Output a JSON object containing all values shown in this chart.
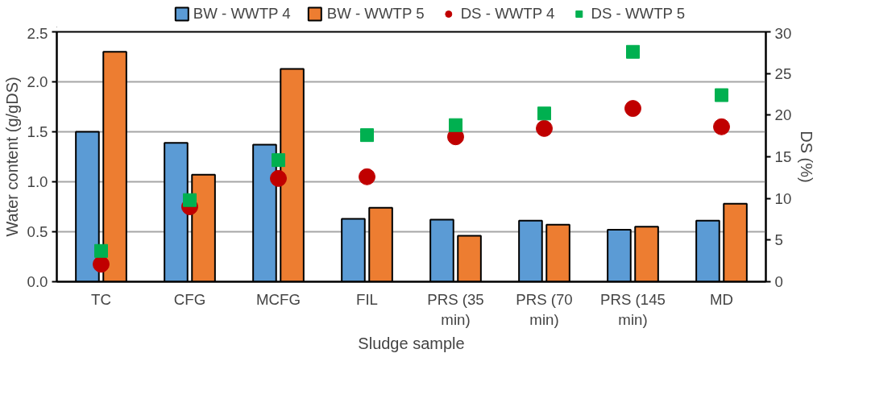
{
  "chart_data": {
    "type": "bar",
    "xlabel": "Sludge sample",
    "ylabel": "Water content (g/gDS)",
    "y2label": "DS (%)",
    "categories": [
      "TC",
      "CFG",
      "MCFG",
      "FIL",
      "PRS (35 min)",
      "PRS (70 min)",
      "PRS (145 min)",
      "MD"
    ],
    "series": [
      {
        "name": "BW - WWTP 4",
        "color": "#5b9bd5",
        "values": [
          1.5,
          1.39,
          1.37,
          0.63,
          0.62,
          0.61,
          0.52,
          0.61
        ]
      },
      {
        "name": "BW - WWTP 5",
        "color": "#ed7d31",
        "values": [
          2.3,
          1.07,
          2.13,
          0.74,
          0.46,
          0.57,
          0.55,
          0.78
        ]
      },
      {
        "name": "DS - WWTP 4",
        "color": "#c00000",
        "type": "scatter",
        "marker": "circle",
        "axis": "y2",
        "values": [
          2.1,
          9.0,
          12.4,
          12.6,
          17.4,
          18.4,
          20.8,
          18.6
        ]
      },
      {
        "name": "DS - WWTP 5",
        "color": "#00b050",
        "type": "scatter",
        "marker": "square",
        "axis": "y2",
        "values": [
          3.7,
          9.8,
          14.6,
          17.6,
          18.8,
          20.2,
          27.6,
          22.4
        ]
      }
    ],
    "ylim": [
      0,
      2.5
    ],
    "yticks": [
      {
        "value": 0,
        "label": "0.0"
      },
      0.5,
      {
        "value": 1,
        "label": "1.0"
      },
      1.5,
      {
        "value": 2,
        "label": "2.0"
      },
      2.5
    ],
    "y2lim": [
      0,
      30
    ],
    "y2ticks": [
      0,
      5,
      10,
      15,
      20,
      25,
      30
    ],
    "grid": "y",
    "legend": "top"
  }
}
